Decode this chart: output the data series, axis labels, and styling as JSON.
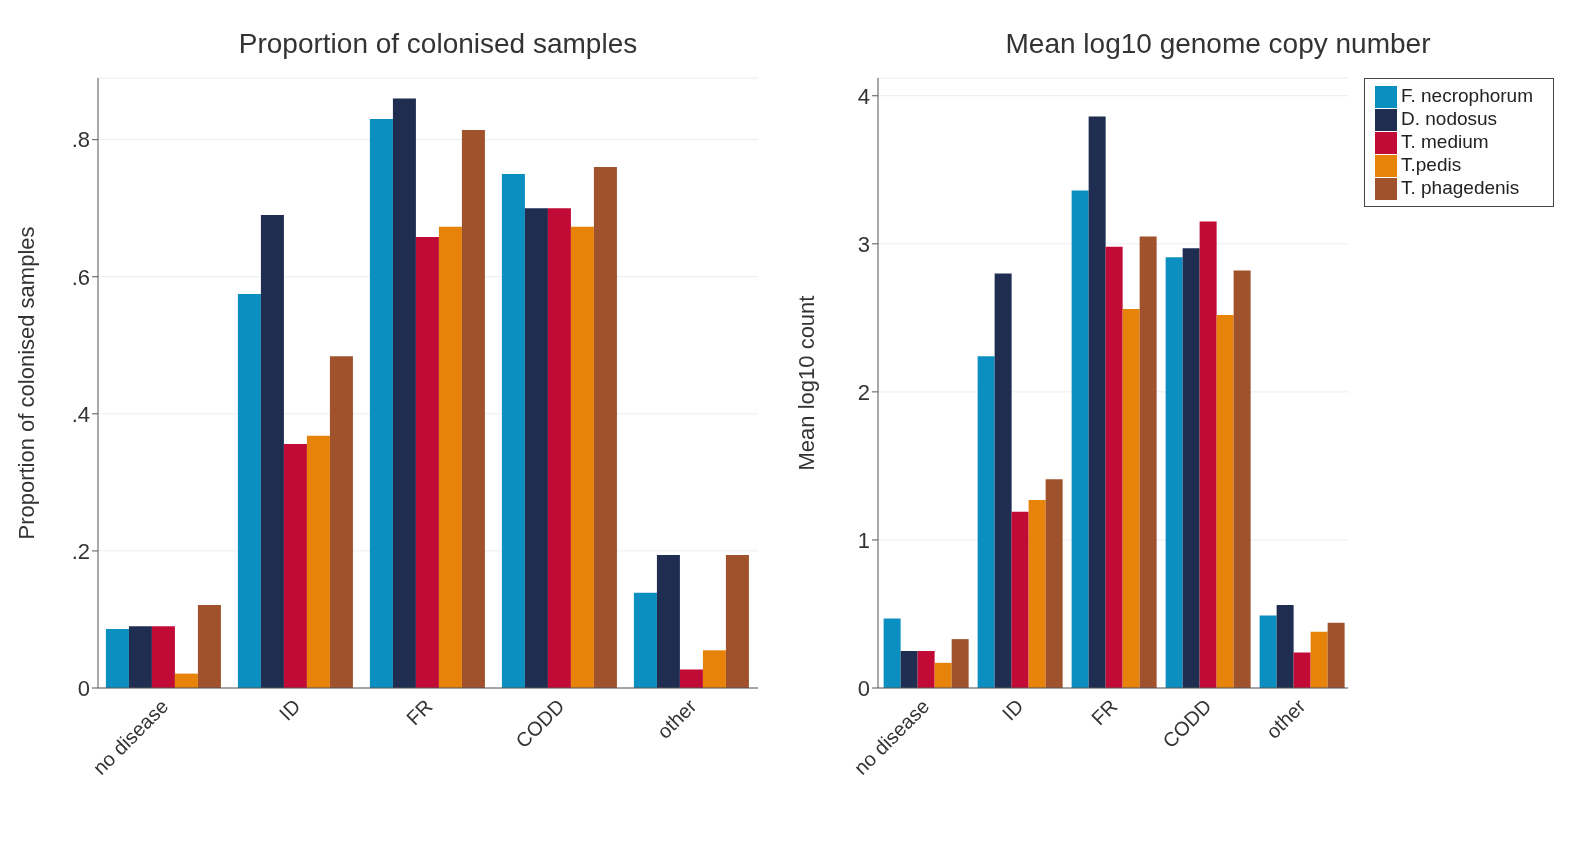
{
  "chart_data": [
    {
      "type": "bar",
      "title": "Proportion of colonised samples",
      "ylabel": "Proportion of colonised samples",
      "categories": [
        "no disease",
        "ID",
        "FR",
        "CODD",
        "other"
      ],
      "series": [
        {
          "color": "#0a8fc0",
          "values": [
            0.086,
            0.575,
            0.83,
            0.75,
            0.139
          ]
        },
        {
          "color": "#1f2d50",
          "values": [
            0.09,
            0.69,
            0.86,
            0.7,
            0.194
          ]
        },
        {
          "color": "#c10a35",
          "values": [
            0.09,
            0.356,
            0.658,
            0.7,
            0.027
          ]
        },
        {
          "color": "#e8830a",
          "values": [
            0.021,
            0.368,
            0.673,
            0.673,
            0.055
          ]
        },
        {
          "color": "#a0522d",
          "values": [
            0.121,
            0.484,
            0.814,
            0.76,
            0.194
          ]
        }
      ],
      "ylim": [
        0,
        0.89
      ],
      "yticks": [
        0,
        {
          "value": 0.2,
          "label": ".2"
        },
        {
          "value": 0.4,
          "label": ".4"
        },
        {
          "value": 0.6,
          "label": ".6"
        },
        {
          "value": 0.8,
          "label": ".8"
        }
      ],
      "grid": "y",
      "legend": false
    },
    {
      "type": "bar",
      "title": "Mean log10 genome copy number",
      "ylabel": "Mean log10 count",
      "categories": [
        "no disease",
        "ID",
        "FR",
        "CODD",
        "other"
      ],
      "series": [
        {
          "name": "F. necrophorum",
          "color": "#0a8fc0",
          "values": [
            0.47,
            2.24,
            3.36,
            2.91,
            0.49
          ]
        },
        {
          "name": "D. nodosus",
          "color": "#1f2d50",
          "values": [
            0.25,
            2.8,
            3.86,
            2.97,
            0.56
          ]
        },
        {
          "name": "T. medium",
          "color": "#c10a35",
          "values": [
            0.25,
            1.19,
            2.98,
            3.15,
            0.24
          ]
        },
        {
          "name": "T.pedis",
          "color": "#e8830a",
          "values": [
            0.17,
            1.27,
            2.56,
            2.52,
            0.38
          ]
        },
        {
          "name": "T. phagedenis",
          "color": "#a0522d",
          "values": [
            0.33,
            1.41,
            3.05,
            2.82,
            0.44
          ]
        }
      ],
      "ylim": [
        0,
        4.12
      ],
      "yticks": [
        0,
        1,
        2,
        3,
        4
      ],
      "grid": "y",
      "legend": "top right"
    }
  ]
}
